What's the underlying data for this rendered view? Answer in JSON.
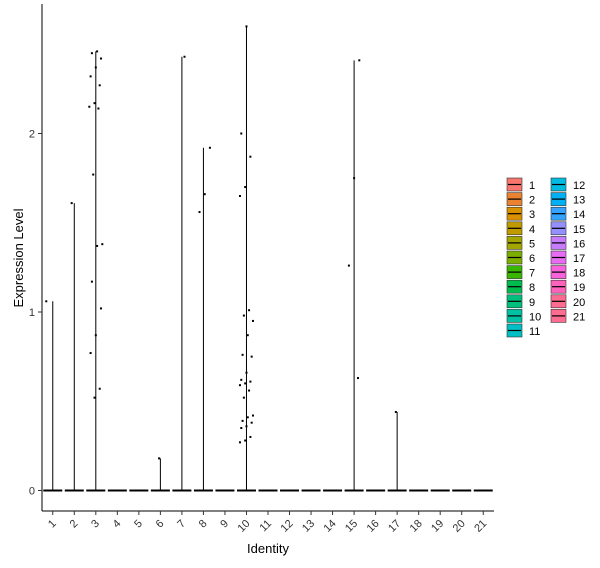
{
  "chart_data": {
    "type": "violin",
    "title": "",
    "xlabel": "Identity",
    "ylabel": "Expression Level",
    "ylim": [
      -0.12,
      2.72
    ],
    "yticks": [
      0,
      1,
      2
    ],
    "categories": [
      "1",
      "2",
      "3",
      "4",
      "5",
      "6",
      "7",
      "8",
      "9",
      "10",
      "11",
      "12",
      "13",
      "14",
      "15",
      "16",
      "17",
      "18",
      "19",
      "20",
      "21"
    ],
    "legend_position": "right",
    "grid": false,
    "groups": [
      {
        "name": "1",
        "color": "#F8766D",
        "max": 1.06,
        "points": [
          1.06
        ]
      },
      {
        "name": "2",
        "color": "#EA8331",
        "max": 1.61,
        "points": [
          1.61
        ]
      },
      {
        "name": "3",
        "color": "#D89000",
        "max": 2.46,
        "points": [
          2.46,
          2.45,
          2.42,
          2.37,
          2.32,
          2.27,
          2.17,
          2.15,
          2.14,
          1.77,
          1.38,
          1.37,
          1.17,
          1.02,
          0.87,
          0.77,
          0.57,
          0.52
        ]
      },
      {
        "name": "4",
        "color": "#C09B00",
        "max": 0,
        "points": []
      },
      {
        "name": "5",
        "color": "#A3A500",
        "max": 0,
        "points": []
      },
      {
        "name": "6",
        "color": "#7CAE00",
        "max": 0.18,
        "points": [
          0.18
        ]
      },
      {
        "name": "7",
        "color": "#39B600",
        "max": 2.43,
        "points": [
          2.43
        ]
      },
      {
        "name": "8",
        "color": "#00BB4E",
        "max": 1.92,
        "points": [
          1.92,
          1.66,
          1.56
        ]
      },
      {
        "name": "9",
        "color": "#00BF7D",
        "max": 0,
        "points": []
      },
      {
        "name": "10",
        "color": "#00C1A3",
        "max": 2.6,
        "points": [
          2.6,
          2.0,
          1.87,
          1.7,
          1.65,
          1.01,
          0.98,
          0.95,
          0.87,
          0.76,
          0.75,
          0.66,
          0.62,
          0.61,
          0.6,
          0.59,
          0.56,
          0.52,
          0.42,
          0.41,
          0.39,
          0.38,
          0.36,
          0.35,
          0.3,
          0.28,
          0.27
        ]
      },
      {
        "name": "11",
        "color": "#00BFC4",
        "max": 0,
        "points": []
      },
      {
        "name": "12",
        "color": "#00BAE0",
        "max": 0,
        "points": []
      },
      {
        "name": "13",
        "color": "#00B0F6",
        "max": 0,
        "points": []
      },
      {
        "name": "14",
        "color": "#35A2FF",
        "max": 0,
        "points": []
      },
      {
        "name": "15",
        "color": "#9590FF",
        "max": 2.41,
        "points": [
          2.41,
          1.75,
          1.26,
          0.63
        ]
      },
      {
        "name": "16",
        "color": "#C77CFF",
        "max": 0,
        "points": []
      },
      {
        "name": "17",
        "color": "#E76BF3",
        "max": 0.44,
        "points": [
          0.44
        ]
      },
      {
        "name": "18",
        "color": "#FA62DB",
        "max": 0,
        "points": []
      },
      {
        "name": "19",
        "color": "#FF62BC",
        "max": 0,
        "points": []
      },
      {
        "name": "20",
        "color": "#FF6C91",
        "max": 0,
        "points": []
      },
      {
        "name": "21",
        "color": "#FF6C91",
        "max": 0,
        "points": []
      }
    ]
  }
}
